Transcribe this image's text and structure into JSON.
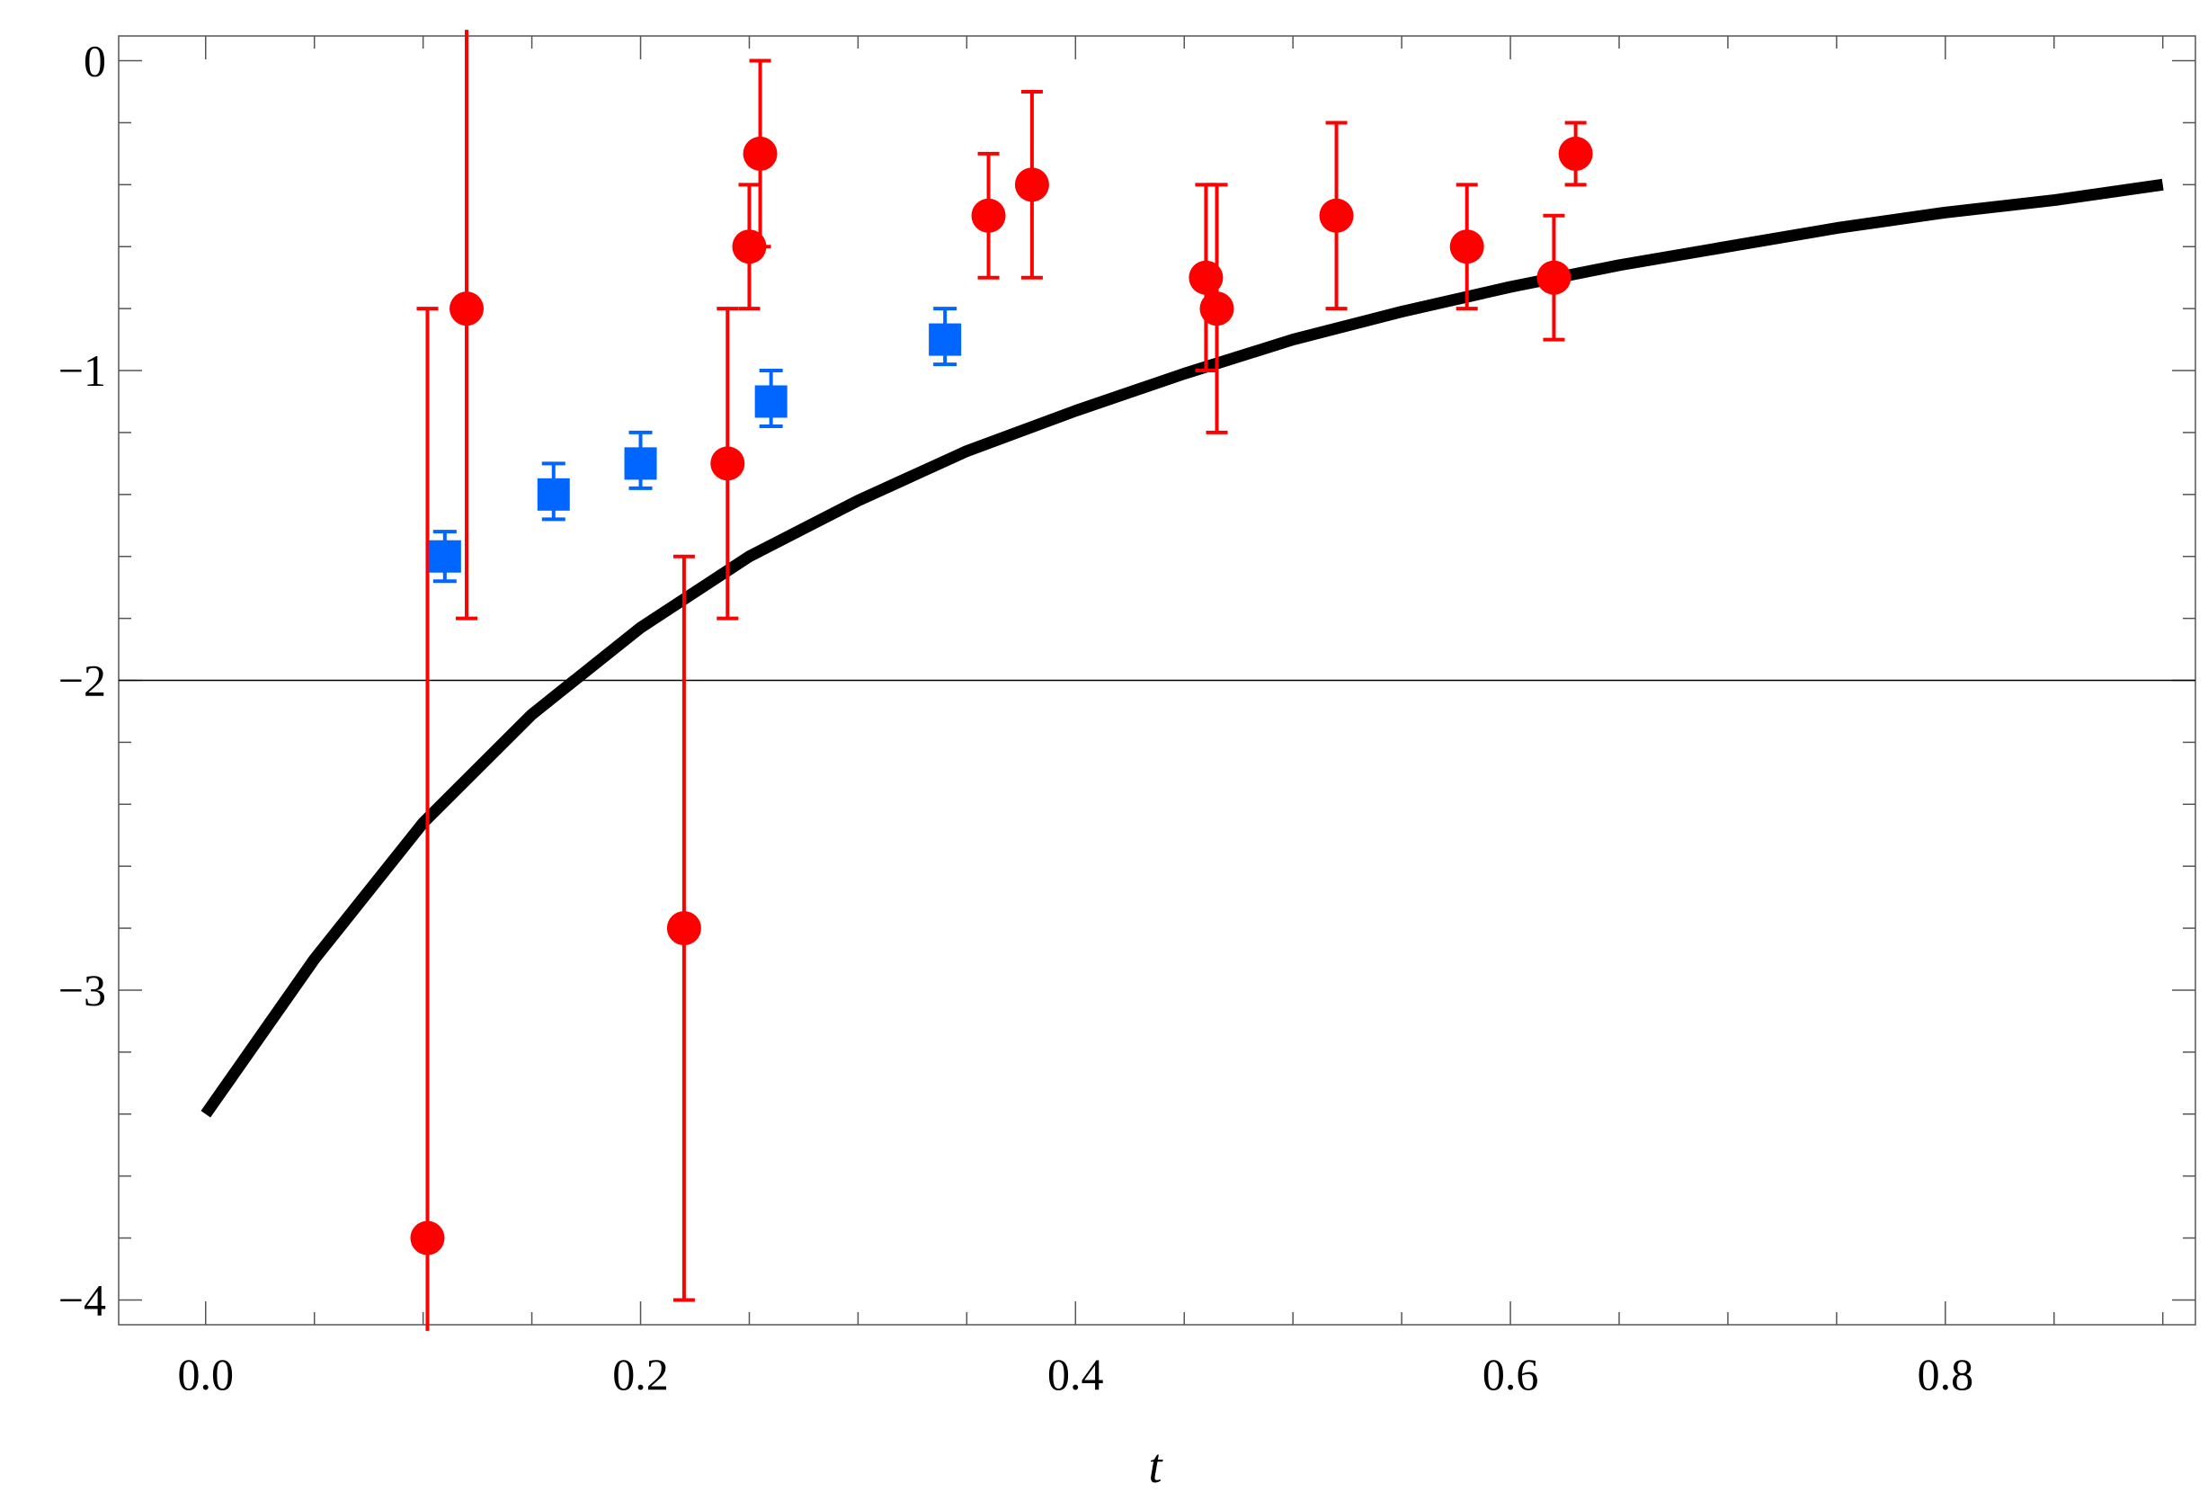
{
  "chart_data": {
    "type": "scatter",
    "title": "",
    "xlabel": "t",
    "ylabel": "",
    "xlim": [
      -0.04,
      0.915
    ],
    "ylim": [
      -4.08,
      0.08
    ],
    "x_major_ticks": [
      {
        "value": 0.0,
        "label": "0.0"
      },
      {
        "value": 0.2,
        "label": "0.2"
      },
      {
        "value": 0.4,
        "label": "0.4"
      },
      {
        "value": 0.6,
        "label": "0.6"
      },
      {
        "value": 0.8,
        "label": "0.8"
      }
    ],
    "y_major_ticks": [
      {
        "value": 0,
        "label": "0"
      },
      {
        "value": -1,
        "label": "−1"
      },
      {
        "value": -2,
        "label": "−2"
      },
      {
        "value": -3,
        "label": "−3"
      },
      {
        "value": -4,
        "label": "−4"
      }
    ],
    "grid": false,
    "reference_line": {
      "y": -2,
      "color": "#000000"
    },
    "curve": {
      "color": "#000000",
      "x": [
        0.0,
        0.05,
        0.1,
        0.15,
        0.2,
        0.25,
        0.3,
        0.35,
        0.4,
        0.45,
        0.5,
        0.55,
        0.6,
        0.65,
        0.7,
        0.75,
        0.8,
        0.85,
        0.9
      ],
      "y": [
        -3.4,
        -2.9,
        -2.46,
        -2.11,
        -1.83,
        -1.6,
        -1.42,
        -1.26,
        -1.13,
        -1.01,
        -0.9,
        -0.81,
        -0.73,
        -0.66,
        -0.6,
        -0.54,
        -0.49,
        -0.45,
        -0.4
      ]
    },
    "series": [
      {
        "marker": "circle",
        "color": "#ff0000",
        "points": [
          {
            "x": 0.102,
            "y": -3.8,
            "ylow": -4.1,
            "yhigh": -0.8,
            "low_open": true
          },
          {
            "x": 0.12,
            "y": -0.8,
            "ylow": -1.8,
            "yhigh": 0.1,
            "high_open": true
          },
          {
            "x": 0.22,
            "y": -2.8,
            "ylow": -4.0,
            "yhigh": -1.6
          },
          {
            "x": 0.24,
            "y": -1.3,
            "ylow": -1.8,
            "yhigh": -0.8
          },
          {
            "x": 0.25,
            "y": -0.6,
            "ylow": -0.8,
            "yhigh": -0.4
          },
          {
            "x": 0.255,
            "y": -0.3,
            "ylow": -0.6,
            "yhigh": 0.0
          },
          {
            "x": 0.36,
            "y": -0.5,
            "ylow": -0.7,
            "yhigh": -0.3
          },
          {
            "x": 0.38,
            "y": -0.4,
            "ylow": -0.7,
            "yhigh": -0.1
          },
          {
            "x": 0.46,
            "y": -0.7,
            "ylow": -1.0,
            "yhigh": -0.4
          },
          {
            "x": 0.465,
            "y": -0.8,
            "ylow": -1.2,
            "yhigh": -0.4
          },
          {
            "x": 0.52,
            "y": -0.5,
            "ylow": -0.8,
            "yhigh": -0.2
          },
          {
            "x": 0.58,
            "y": -0.6,
            "ylow": -0.8,
            "yhigh": -0.4
          },
          {
            "x": 0.62,
            "y": -0.7,
            "ylow": -0.9,
            "yhigh": -0.5
          },
          {
            "x": 0.63,
            "y": -0.3,
            "ylow": -0.4,
            "yhigh": -0.2
          }
        ]
      },
      {
        "marker": "square",
        "color": "#0066ff",
        "points": [
          {
            "x": 0.11,
            "y": -1.6,
            "ylow": -1.68,
            "yhigh": -1.52
          },
          {
            "x": 0.16,
            "y": -1.4,
            "ylow": -1.48,
            "yhigh": -1.3
          },
          {
            "x": 0.2,
            "y": -1.3,
            "ylow": -1.38,
            "yhigh": -1.2
          },
          {
            "x": 0.26,
            "y": -1.1,
            "ylow": -1.18,
            "yhigh": -1.0
          },
          {
            "x": 0.34,
            "y": -0.9,
            "ylow": -0.98,
            "yhigh": -0.8
          }
        ]
      }
    ]
  }
}
